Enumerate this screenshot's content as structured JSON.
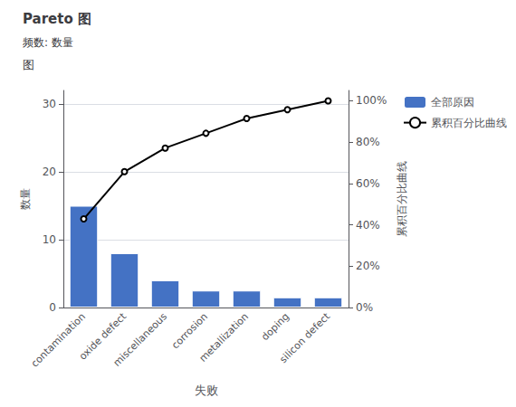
{
  "chart_data": {
    "type": "bar",
    "title": "Pareto 图",
    "subtitle": "频数: 数量",
    "annotations": [
      "图"
    ],
    "categories": [
      "contamination",
      "oxide defect",
      "miscellaneous",
      "corrosion",
      "metallization",
      "doping",
      "silicon defect"
    ],
    "series": [
      {
        "name": "全部原因",
        "type": "bar",
        "color": "#4472C4",
        "values": [
          15,
          8,
          4,
          2.5,
          2.5,
          1.5,
          1.5
        ]
      },
      {
        "name": "累积百分比曲线",
        "type": "line",
        "color": "#000000",
        "axis": "y2",
        "values": [
          42.857142857142854,
          65.71428571428571,
          77.14285714285714,
          84.28571428571429,
          91.42857142857143,
          95.71428571428572,
          100
        ]
      }
    ],
    "xlabel": "失败",
    "ylabel": "数量",
    "y2label": "累积百分比曲线",
    "ylim": [
      0,
      32
    ],
    "yticks": [
      0,
      10,
      20,
      30
    ],
    "y2lim": [
      0,
      105
    ],
    "y2ticks": [
      {
        "value": 0,
        "label": "0%"
      },
      {
        "value": 20,
        "label": "20%"
      },
      {
        "value": 40,
        "label": "40%"
      },
      {
        "value": 60,
        "label": "60%"
      },
      {
        "value": 80,
        "label": "80%"
      },
      {
        "value": 100,
        "label": "100%"
      }
    ],
    "grid": true,
    "legend": "right"
  }
}
